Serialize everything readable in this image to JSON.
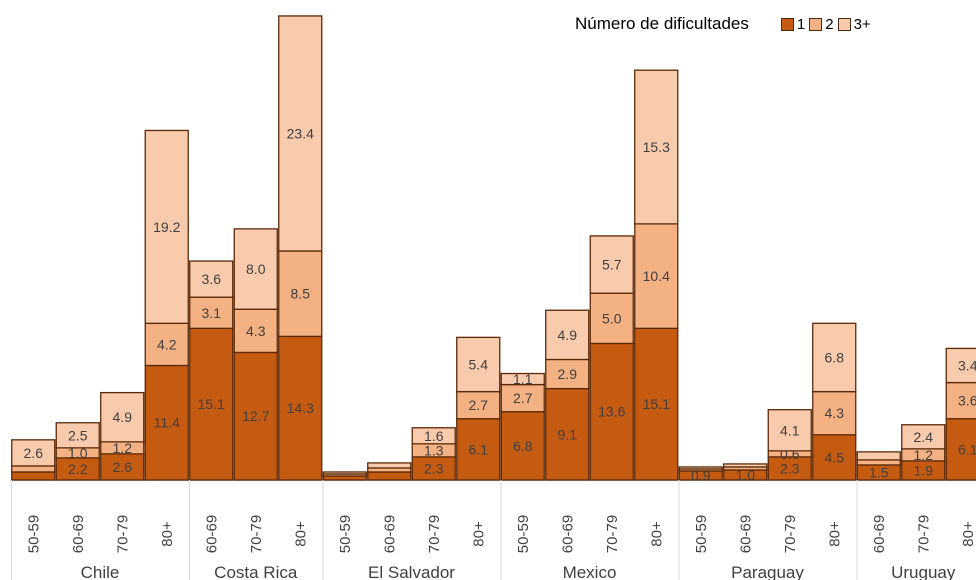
{
  "chart_data": {
    "type": "bar",
    "stacked": true,
    "legend": {
      "title": "Número de dificultades",
      "position": "top-right"
    },
    "series": [
      {
        "name": "1",
        "color": "#c55a11"
      },
      {
        "name": "2",
        "color": "#f4b183"
      },
      {
        "name": "3+",
        "color": "#f8cbad"
      }
    ],
    "ylim": [
      0,
      45
    ],
    "grid": false,
    "groups": [
      {
        "country": "Chile",
        "bars": [
          {
            "age": "50-59",
            "values": [
              0.8,
              0.6,
              2.6
            ],
            "labels": [
              "",
              "",
              "2.6"
            ]
          },
          {
            "age": "60-69",
            "values": [
              2.2,
              1.0,
              2.5
            ],
            "labels": [
              "2.2",
              "1.0",
              "2.5"
            ]
          },
          {
            "age": "70-79",
            "values": [
              2.6,
              1.2,
              4.9
            ],
            "labels": [
              "2.6",
              "1.2",
              "4.9"
            ]
          },
          {
            "age": "80+",
            "values": [
              11.4,
              4.2,
              19.2
            ],
            "labels": [
              "11.4",
              "4.2",
              "19.2"
            ]
          }
        ]
      },
      {
        "country": "Costa Rica",
        "bars": [
          {
            "age": "60-69",
            "values": [
              15.1,
              3.1,
              3.6
            ],
            "labels": [
              "15.1",
              "3.1",
              "3.6"
            ]
          },
          {
            "age": "70-79",
            "values": [
              12.7,
              4.3,
              8.0
            ],
            "labels": [
              "12.7",
              "4.3",
              "8.0"
            ]
          },
          {
            "age": "80+",
            "values": [
              14.3,
              8.5,
              23.4
            ],
            "labels": [
              "14.3",
              "8.5",
              "23.4"
            ]
          }
        ]
      },
      {
        "country": "El Salvador",
        "bars": [
          {
            "age": "50-59",
            "values": [
              0.4,
              0.2,
              0.2
            ],
            "labels": [
              "",
              "",
              ""
            ]
          },
          {
            "age": "60-69",
            "values": [
              0.8,
              0.4,
              0.5
            ],
            "labels": [
              "",
              "",
              ""
            ]
          },
          {
            "age": "70-79",
            "values": [
              2.3,
              1.3,
              1.6
            ],
            "labels": [
              "2.3",
              "1.3",
              "1.6"
            ]
          },
          {
            "age": "80+",
            "values": [
              6.1,
              2.7,
              5.4
            ],
            "labels": [
              "6.1",
              "2.7",
              "5.4"
            ]
          }
        ]
      },
      {
        "country": "Mexico",
        "bars": [
          {
            "age": "50-59",
            "values": [
              6.8,
              2.7,
              1.1
            ],
            "labels": [
              "6.8",
              "2.7",
              "1.1"
            ]
          },
          {
            "age": "60-69",
            "values": [
              9.1,
              2.9,
              4.9
            ],
            "labels": [
              "9.1",
              "2.9",
              "4.9"
            ]
          },
          {
            "age": "70-79",
            "values": [
              13.6,
              5.0,
              5.7
            ],
            "labels": [
              "13.6",
              "5.0",
              "5.7"
            ]
          },
          {
            "age": "80+",
            "values": [
              15.1,
              10.4,
              15.3
            ],
            "labels": [
              "15.1",
              "10.4",
              "15.3"
            ]
          }
        ]
      },
      {
        "country": "Paraguay",
        "bars": [
          {
            "age": "50-59",
            "values": [
              0.9,
              0.2,
              0.2
            ],
            "labels": [
              "0.9",
              "",
              ""
            ]
          },
          {
            "age": "60-69",
            "values": [
              1.0,
              0.3,
              0.3
            ],
            "labels": [
              "1.0",
              "",
              ""
            ]
          },
          {
            "age": "70-79",
            "values": [
              2.3,
              0.6,
              4.1
            ],
            "labels": [
              "2.3",
              "0.6",
              "4.1"
            ]
          },
          {
            "age": "80+",
            "values": [
              4.5,
              4.3,
              6.8
            ],
            "labels": [
              "4.5",
              "4.3",
              "6.8"
            ]
          }
        ]
      },
      {
        "country": "Uruguay",
        "bars": [
          {
            "age": "60-69",
            "values": [
              1.5,
              0.5,
              0.8
            ],
            "labels": [
              "1.5",
              "",
              ""
            ]
          },
          {
            "age": "70-79",
            "values": [
              1.9,
              1.2,
              2.4
            ],
            "labels": [
              "1.9",
              "1.2",
              "2.4"
            ]
          },
          {
            "age": "80+",
            "values": [
              6.1,
              3.6,
              3.4
            ],
            "labels": [
              "6.1",
              "3.6",
              "3.4"
            ]
          }
        ]
      }
    ]
  }
}
